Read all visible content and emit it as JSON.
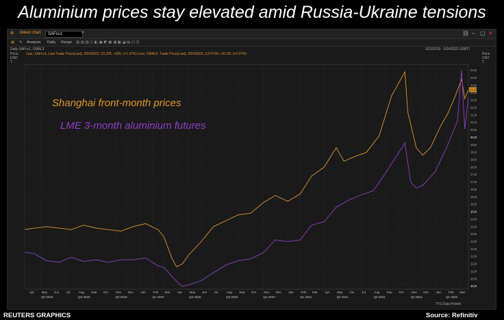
{
  "title": "Aluminium prices stay elevated amid Russia-Ukraine tensions",
  "window": {
    "name": "linked chart",
    "ticker": "SAFcv1",
    "toolbar": [
      "Analysis",
      "Daily",
      "Range"
    ],
    "interval_label": "Daily SAFcv1, CMAL3",
    "range_label": "3/22/2019 - 3/24/2022 (GMT)",
    "legend_line": "Line; SAFcv1, Last Trade Price(Last), 3/24/2022, 23,205, +325, (+1.37%)   Line; CMAL3, Trade Price(Last), 3/24/2022, 3,674.50, +31.00, (+0.37%)",
    "left_axis_header": [
      "Price",
      "USD",
      "T"
    ],
    "right_axis_header": [
      "Price",
      "CNY",
      "T"
    ],
    "left_badge": "3,674",
    "right_badge": "23,205",
    "status_right": "7Y1 Data Period"
  },
  "footer": {
    "left": "REUTERS GRAPHICS",
    "right": "Source: Refinitiv"
  },
  "colors": {
    "shfe": "#e0962a",
    "lme": "#8e3fc7",
    "bg": "#1a1a1a",
    "grid": "#3a3a3a"
  },
  "chart_data": {
    "type": "line",
    "x_range": [
      "2019-03-22",
      "2022-03-24"
    ],
    "x_month_labels": [
      "Apr",
      "May",
      "Jun",
      "Jul",
      "Aug",
      "Sep",
      "Oct",
      "Nov",
      "Dec",
      "Jan",
      "Feb",
      "Mar",
      "Apr",
      "May",
      "Jun",
      "Jul",
      "Aug",
      "Sep",
      "Oct",
      "Nov",
      "Dec",
      "Jan",
      "Feb",
      "Mar",
      "Apr",
      "May",
      "Jun",
      "Jul",
      "Aug",
      "Sep",
      "Oct",
      "Nov",
      "Dec",
      "Jan",
      "Feb",
      "Mar"
    ],
    "x_quarter_labels": [
      "Q2 2019",
      "Q3 2019",
      "Q4 2019",
      "Q1 2020",
      "Q2 2020",
      "Q3 2020",
      "Q4 2020",
      "Q1 2021",
      "Q2 2021",
      "Q3 2021",
      "Q4 2021",
      "Q1 2022"
    ],
    "y_left": {
      "unit": "USD",
      "range": [
        1450,
        4050
      ],
      "ticks": [
        1500,
        1550,
        1600,
        1650,
        1700,
        1750,
        1800,
        1850,
        1900,
        1950,
        2000,
        2050,
        2100,
        2150,
        2200,
        2250,
        2300,
        2350,
        2400,
        2450,
        2500,
        2550,
        2600,
        2650,
        2700,
        2750,
        2800,
        2850,
        2900,
        2950,
        3000,
        3050,
        3100,
        3150,
        3200,
        3250,
        3300,
        3350,
        3400,
        3450,
        3500,
        3550,
        3600,
        3650,
        3700,
        3750,
        3800,
        3850,
        3900,
        3950,
        4000
      ]
    },
    "y_right": {
      "unit": "CNY",
      "range": [
        9800,
        24900
      ],
      "ticks": [
        10000,
        10500,
        11000,
        11500,
        12000,
        12500,
        13000,
        13500,
        14000,
        14500,
        15000,
        15500,
        16000,
        16500,
        17000,
        17500,
        18000,
        18500,
        19000,
        19500,
        20000,
        20500,
        21000,
        21500,
        22000,
        22500,
        23000,
        23500,
        24000,
        24500
      ]
    },
    "series": [
      {
        "name": "Shanghai front-month prices",
        "axis": "right",
        "points": [
          [
            "2019-03-22",
            13800
          ],
          [
            "2019-04-15",
            13900
          ],
          [
            "2019-05-15",
            14000
          ],
          [
            "2019-06-15",
            13900
          ],
          [
            "2019-07-15",
            13800
          ],
          [
            "2019-08-15",
            14100
          ],
          [
            "2019-09-15",
            13900
          ],
          [
            "2019-10-15",
            13800
          ],
          [
            "2019-11-15",
            13700
          ],
          [
            "2019-12-15",
            14000
          ],
          [
            "2020-01-15",
            14200
          ],
          [
            "2020-02-15",
            13800
          ],
          [
            "2020-03-01",
            13300
          ],
          [
            "2020-03-20",
            11900
          ],
          [
            "2020-04-01",
            11300
          ],
          [
            "2020-04-15",
            11500
          ],
          [
            "2020-05-01",
            12100
          ],
          [
            "2020-06-01",
            13000
          ],
          [
            "2020-07-01",
            14000
          ],
          [
            "2020-08-01",
            14400
          ],
          [
            "2020-09-01",
            14800
          ],
          [
            "2020-10-01",
            14900
          ],
          [
            "2020-11-01",
            15600
          ],
          [
            "2020-12-01",
            16100
          ],
          [
            "2021-01-01",
            15700
          ],
          [
            "2021-02-01",
            16200
          ],
          [
            "2021-03-01",
            17400
          ],
          [
            "2021-04-01",
            18000
          ],
          [
            "2021-05-01",
            19300
          ],
          [
            "2021-05-20",
            18400
          ],
          [
            "2021-06-15",
            18700
          ],
          [
            "2021-07-15",
            19000
          ],
          [
            "2021-08-15",
            20100
          ],
          [
            "2021-09-15",
            22800
          ],
          [
            "2021-10-18",
            24400
          ],
          [
            "2021-10-25",
            21700
          ],
          [
            "2021-11-15",
            19300
          ],
          [
            "2021-12-01",
            18800
          ],
          [
            "2021-12-20",
            19300
          ],
          [
            "2022-01-15",
            20800
          ],
          [
            "2022-02-01",
            21600
          ],
          [
            "2022-02-20",
            22800
          ],
          [
            "2022-03-07",
            23900
          ],
          [
            "2022-03-15",
            22600
          ],
          [
            "2022-03-24",
            23205
          ]
        ]
      },
      {
        "name": "LME 3-month aluminium futures",
        "axis": "left",
        "points": [
          [
            "2019-03-22",
            1880
          ],
          [
            "2019-04-15",
            1860
          ],
          [
            "2019-05-15",
            1780
          ],
          [
            "2019-06-15",
            1760
          ],
          [
            "2019-07-15",
            1820
          ],
          [
            "2019-08-15",
            1770
          ],
          [
            "2019-09-15",
            1790
          ],
          [
            "2019-10-15",
            1760
          ],
          [
            "2019-11-15",
            1790
          ],
          [
            "2019-12-15",
            1790
          ],
          [
            "2020-01-15",
            1810
          ],
          [
            "2020-02-15",
            1720
          ],
          [
            "2020-03-01",
            1700
          ],
          [
            "2020-03-20",
            1600
          ],
          [
            "2020-04-01",
            1540
          ],
          [
            "2020-04-15",
            1480
          ],
          [
            "2020-05-01",
            1500
          ],
          [
            "2020-06-01",
            1550
          ],
          [
            "2020-07-01",
            1640
          ],
          [
            "2020-08-01",
            1730
          ],
          [
            "2020-09-01",
            1780
          ],
          [
            "2020-10-01",
            1800
          ],
          [
            "2020-11-01",
            1870
          ],
          [
            "2020-12-01",
            2020
          ],
          [
            "2021-01-01",
            2000
          ],
          [
            "2021-02-01",
            2020
          ],
          [
            "2021-03-01",
            2190
          ],
          [
            "2021-04-01",
            2230
          ],
          [
            "2021-05-01",
            2400
          ],
          [
            "2021-06-01",
            2480
          ],
          [
            "2021-07-01",
            2540
          ],
          [
            "2021-08-01",
            2590
          ],
          [
            "2021-09-01",
            2800
          ],
          [
            "2021-10-18",
            3140
          ],
          [
            "2021-11-01",
            2690
          ],
          [
            "2021-11-15",
            2620
          ],
          [
            "2021-12-01",
            2650
          ],
          [
            "2022-01-01",
            2810
          ],
          [
            "2022-02-01",
            3120
          ],
          [
            "2022-02-25",
            3400
          ],
          [
            "2022-03-07",
            3980
          ],
          [
            "2022-03-15",
            3300
          ],
          [
            "2022-03-24",
            3674.5
          ]
        ]
      }
    ],
    "annotations": [
      {
        "text": "Shanghai front-month prices",
        "color": "#e0962a"
      },
      {
        "text": "LME 3-month aluminium futures",
        "color": "#8e3fc7"
      }
    ],
    "grid": true
  }
}
